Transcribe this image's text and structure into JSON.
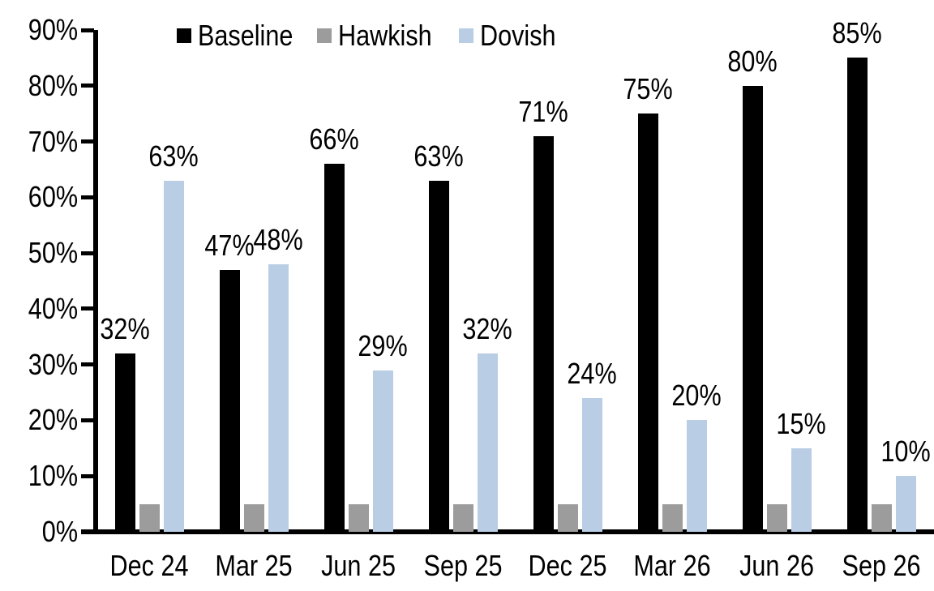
{
  "chart_data": {
    "type": "bar",
    "title": "",
    "categories": [
      "Dec 24",
      "Mar 25",
      "Jun 25",
      "Sep 25",
      "Dec 25",
      "Mar 26",
      "Jun 26",
      "Sep 26"
    ],
    "series": [
      {
        "name": "Baseline",
        "color": "#000000",
        "values": [
          32,
          47,
          66,
          63,
          71,
          75,
          80,
          85
        ],
        "data_labels": [
          "32%",
          "47%",
          "66%",
          "63%",
          "71%",
          "75%",
          "80%",
          "85%"
        ]
      },
      {
        "name": "Hawkish",
        "color": "#9C9C9C",
        "values": [
          5,
          5,
          5,
          5,
          5,
          5,
          5,
          5
        ],
        "data_labels": []
      },
      {
        "name": "Dovish",
        "color": "#B9CDE5",
        "values": [
          63,
          48,
          29,
          32,
          24,
          20,
          15,
          10
        ],
        "data_labels": [
          "63%",
          "48%",
          "29%",
          "32%",
          "24%",
          "20%",
          "15%",
          "10%"
        ]
      }
    ],
    "y_axis": {
      "min": 0,
      "max": 90,
      "tick_step": 10,
      "tick_labels": [
        "0%",
        "10%",
        "20%",
        "30%",
        "40%",
        "50%",
        "60%",
        "70%",
        "80%",
        "90%"
      ]
    },
    "legend": {
      "position": "top",
      "entries": [
        "Baseline",
        "Hawkish",
        "Dovish"
      ]
    },
    "grid": false,
    "axis_color": "#000000",
    "background": "#FFFFFF"
  }
}
